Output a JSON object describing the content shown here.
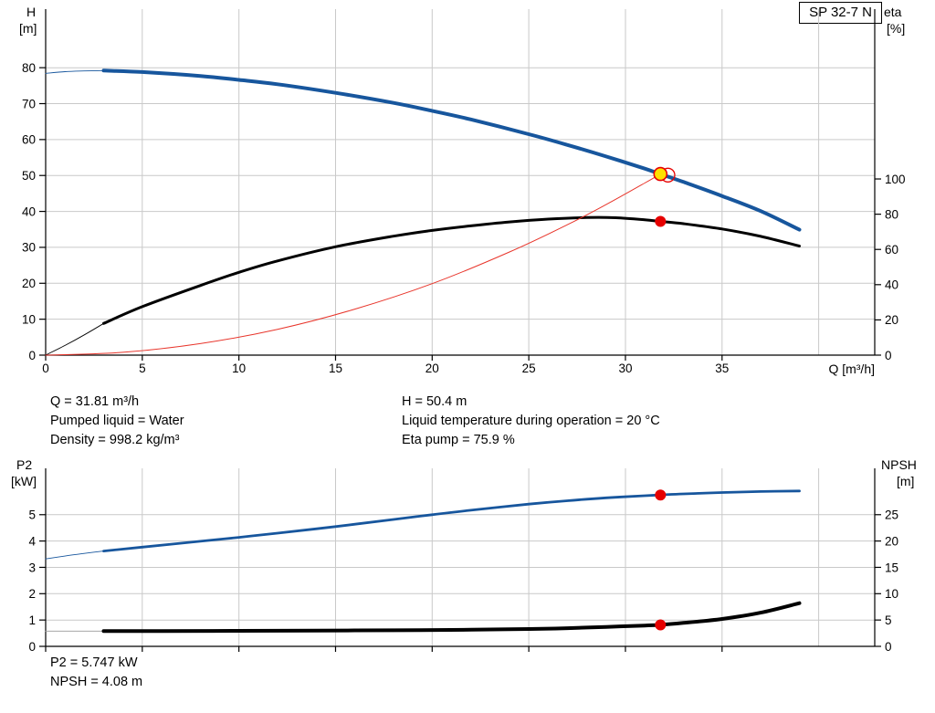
{
  "colors": {
    "grid": "#c9c9c9",
    "axis": "#000000",
    "dot_red": "#e60000",
    "dot_yellow": "#ffe100"
  },
  "readouts": {
    "top_left": [
      "Q = 31.81 m³/h",
      "Pumped liquid = Water",
      "Density = 998.2 kg/m³"
    ],
    "top_right": [
      "H = 50.4 m",
      "Liquid temperature during operation = 20 °C",
      "Eta pump = 75.9 %"
    ],
    "bottom": [
      "P2 = 5.747 kW",
      "NPSH = 4.08 m"
    ]
  },
  "chart_data": [
    {
      "id": "qh-eta",
      "type": "line",
      "title": "SP 32-7 N",
      "xlabel": "Q [m³/h]",
      "x_axis": {
        "range": [
          0,
          42.9
        ],
        "ticks": [
          0,
          5,
          10,
          15,
          20,
          25,
          30,
          35
        ],
        "grid": [
          5,
          10,
          15,
          20,
          25,
          30,
          35,
          40
        ]
      },
      "left_axis": {
        "label": "H",
        "unit": "[m]",
        "range": [
          0,
          96.3
        ],
        "ticks": [
          0,
          10,
          20,
          30,
          40,
          50,
          60,
          70,
          80
        ]
      },
      "right_axis": {
        "label": "eta",
        "unit": "[%]",
        "range": [
          0,
          196.4
        ],
        "ticks": [
          0,
          20,
          40,
          60,
          80,
          100
        ]
      },
      "series": [
        {
          "name": "pump-curve-extension",
          "axis": "left",
          "color": "#17569d",
          "width": 0.9,
          "points": [
            [
              0,
              78.4
            ],
            [
              1,
              78.9
            ],
            [
              2,
              79.1
            ],
            [
              3,
              79.2
            ]
          ]
        },
        {
          "name": "pump-curve",
          "axis": "left",
          "color": "#17569d",
          "width": 4,
          "points": [
            [
              3,
              79.2
            ],
            [
              5,
              78.8
            ],
            [
              8,
              77.7
            ],
            [
              10,
              76.6
            ],
            [
              12,
              75.4
            ],
            [
              15,
              73.0
            ],
            [
              18,
              70.2
            ],
            [
              20,
              68.0
            ],
            [
              22,
              65.6
            ],
            [
              25,
              61.5
            ],
            [
              27,
              58.5
            ],
            [
              29,
              55.3
            ],
            [
              31,
              51.9
            ],
            [
              31.81,
              50.4
            ],
            [
              33,
              48.2
            ],
            [
              35,
              44.3
            ],
            [
              37,
              40.1
            ],
            [
              39,
              34.9
            ]
          ]
        },
        {
          "name": "efficiency-curve-extension",
          "axis": "right",
          "color": "#000000",
          "width": 0.9,
          "points": [
            [
              0,
              0
            ],
            [
              1,
              5.5
            ],
            [
              2,
              11.5
            ],
            [
              3,
              18
            ]
          ]
        },
        {
          "name": "efficiency-curve",
          "axis": "right",
          "color": "#000000",
          "width": 3,
          "points": [
            [
              3,
              18
            ],
            [
              5,
              27.5
            ],
            [
              8,
              39.5
            ],
            [
              10,
              47
            ],
            [
              12,
              53.5
            ],
            [
              15,
              61.5
            ],
            [
              18,
              67.5
            ],
            [
              20,
              70.8
            ],
            [
              22,
              73.4
            ],
            [
              24,
              75.6
            ],
            [
              26,
              77.2
            ],
            [
              28,
              78.1
            ],
            [
              29.5,
              78.0
            ],
            [
              31,
              76.8
            ],
            [
              31.81,
              75.9
            ],
            [
              33,
              74.6
            ],
            [
              35,
              71.6
            ],
            [
              37,
              67.4
            ],
            [
              39,
              61.9
            ]
          ]
        },
        {
          "name": "system-curve",
          "axis": "left",
          "color": "#e8352b",
          "width": 1,
          "points": [
            [
              0,
              0
            ],
            [
              4,
              0.8
            ],
            [
              8,
              3.2
            ],
            [
              12,
              7.2
            ],
            [
              16,
              12.8
            ],
            [
              20,
              19.9
            ],
            [
              24,
              28.7
            ],
            [
              27,
              36.3
            ],
            [
              29,
              41.9
            ],
            [
              31,
              47.9
            ],
            [
              31.81,
              50.4
            ]
          ]
        }
      ],
      "markers": [
        {
          "name": "duty-point-ring",
          "style": "ring",
          "axis": "left",
          "x": 32.2,
          "y": 50.1
        },
        {
          "name": "duty-point",
          "style": "duty",
          "axis": "left",
          "x": 31.81,
          "y": 50.4
        },
        {
          "name": "eta-point",
          "style": "dot",
          "axis": "right",
          "x": 31.81,
          "y": 75.9
        }
      ]
    },
    {
      "id": "p2-npsh",
      "type": "line",
      "title": "",
      "xlabel": "",
      "x_axis": {
        "range": [
          0,
          42.9
        ],
        "ticks": [
          0,
          5,
          10,
          15,
          20,
          25,
          30,
          35
        ],
        "grid": [
          5,
          10,
          15,
          20,
          25,
          30,
          35,
          40
        ]
      },
      "left_axis": {
        "label": "P2",
        "unit": "[kW]",
        "range": [
          0,
          6.76
        ],
        "ticks": [
          0,
          1,
          2,
          3,
          4,
          5
        ]
      },
      "right_axis": {
        "label": "NPSH",
        "unit": "[m]",
        "range": [
          0,
          33.8
        ],
        "ticks": [
          0,
          5,
          10,
          15,
          20,
          25
        ]
      },
      "series": [
        {
          "name": "p2-curve-extension",
          "axis": "left",
          "color": "#17569d",
          "width": 0.9,
          "points": [
            [
              0,
              3.32
            ],
            [
              1,
              3.43
            ],
            [
              2,
              3.53
            ],
            [
              3,
              3.62
            ]
          ]
        },
        {
          "name": "p2-curve",
          "axis": "left",
          "color": "#17569d",
          "width": 2.8,
          "points": [
            [
              3,
              3.62
            ],
            [
              5,
              3.77
            ],
            [
              8,
              3.99
            ],
            [
              10,
              4.14
            ],
            [
              12,
              4.3
            ],
            [
              15,
              4.55
            ],
            [
              18,
              4.82
            ],
            [
              20,
              5.0
            ],
            [
              22,
              5.17
            ],
            [
              25,
              5.4
            ],
            [
              27,
              5.53
            ],
            [
              29,
              5.64
            ],
            [
              31,
              5.72
            ],
            [
              31.81,
              5.75
            ],
            [
              33,
              5.79
            ],
            [
              35,
              5.84
            ],
            [
              37,
              5.88
            ],
            [
              39,
              5.9
            ]
          ]
        },
        {
          "name": "npsh-curve-extension",
          "axis": "right",
          "color": "#9a9a9a",
          "width": 0.9,
          "points": [
            [
              0,
              2.9
            ],
            [
              1.5,
              2.9
            ],
            [
              3,
              2.9
            ]
          ]
        },
        {
          "name": "npsh-curve",
          "axis": "right",
          "color": "#000000",
          "width": 4,
          "points": [
            [
              3,
              2.9
            ],
            [
              6,
              2.9
            ],
            [
              10,
              2.95
            ],
            [
              14,
              3.0
            ],
            [
              18,
              3.05
            ],
            [
              22,
              3.15
            ],
            [
              25,
              3.3
            ],
            [
              27,
              3.45
            ],
            [
              29,
              3.7
            ],
            [
              31,
              3.95
            ],
            [
              31.81,
              4.08
            ],
            [
              33,
              4.45
            ],
            [
              35,
              5.2
            ],
            [
              37,
              6.4
            ],
            [
              39,
              8.2
            ]
          ]
        }
      ],
      "markers": [
        {
          "name": "p2-point",
          "style": "dot",
          "axis": "left",
          "x": 31.81,
          "y": 5.747
        },
        {
          "name": "npsh-point",
          "style": "dot",
          "axis": "right",
          "x": 31.81,
          "y": 4.08
        }
      ]
    }
  ]
}
